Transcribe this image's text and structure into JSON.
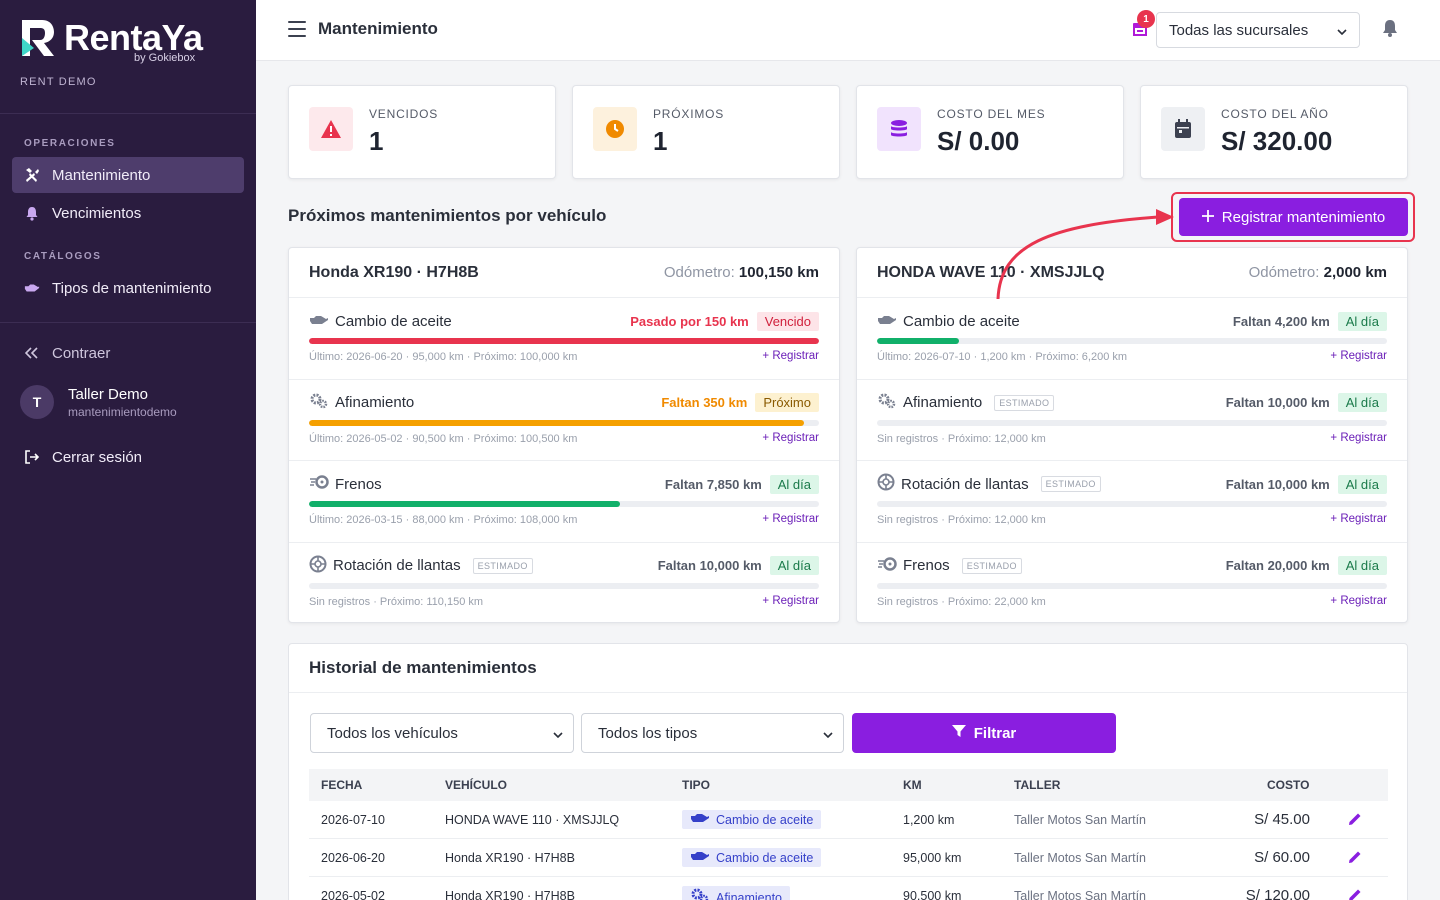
{
  "brand": {
    "name": "RentaYa",
    "by": "by Gokiebox",
    "account": "RENT DEMO"
  },
  "sidebar": {
    "section_ops": "OPERACIONES",
    "item_mant": "Mantenimiento",
    "item_venc": "Vencimientos",
    "section_cat": "CATÁLOGOS",
    "item_tipos": "Tipos de mantenimiento",
    "collapse": "Contraer",
    "user_initial": "T",
    "user_name": "Taller Demo",
    "user_sub": "mantenimientodemo",
    "logout": "Cerrar sesión"
  },
  "topbar": {
    "title": "Mantenimiento",
    "branch": "Todas las sucursales",
    "notif_count": "1"
  },
  "stats": [
    {
      "label": "VENCIDOS",
      "value": "1",
      "color": "#e8344e"
    },
    {
      "label": "PRÓXIMOS",
      "value": "1",
      "color": "#f08a00"
    },
    {
      "label": "COSTO DEL MES",
      "value": "S/ 0.00",
      "color": "#8a1ee0"
    },
    {
      "label": "COSTO DEL AÑO",
      "value": "S/ 320.00",
      "color": "#3c4150"
    }
  ],
  "upcoming": {
    "title": "Próximos mantenimientos por vehículo",
    "register_label": "Registrar mantenimiento",
    "odometer_label": "Odómetro:",
    "estimated_label": "ESTIMADO",
    "row_register": "Registrar",
    "vehicles": [
      {
        "name": "Honda XR190 · H7H8B",
        "odometer": "100,150 km",
        "items": [
          {
            "name": "Cambio de aceite",
            "icon": "oil-can",
            "estimated": false,
            "status_text": "Pasado por 150 km",
            "status_color": "#e8344e",
            "badge": "Vencido",
            "badge_bg": "#fde4e8",
            "badge_fg": "#d0203c",
            "progress": 100,
            "bar_color": "#e8344e",
            "detail": "Último: 2026-06-20 · 95,000 km · Próximo: 100,000 km"
          },
          {
            "name": "Afinamiento",
            "icon": "cogs",
            "estimated": false,
            "status_text": "Faltan 350 km",
            "status_color": "#f08a00",
            "badge": "Próximo",
            "badge_bg": "#fdf1d0",
            "badge_fg": "#8a5a00",
            "progress": 97,
            "bar_color": "#f5a000",
            "detail": "Último: 2026-05-02 · 90,500 km · Próximo: 100,500 km"
          },
          {
            "name": "Frenos",
            "icon": "brakes",
            "estimated": false,
            "status_text": "Faltan 7,850 km",
            "status_color": "#555b68",
            "badge": "Al día",
            "badge_bg": "#dcf6e8",
            "badge_fg": "#1a7a4a",
            "progress": 61,
            "bar_color": "#11b06a",
            "detail": "Último: 2026-03-15 · 88,000 km · Próximo: 108,000 km"
          },
          {
            "name": "Rotación de llantas",
            "icon": "tire",
            "estimated": true,
            "status_text": "Faltan 10,000 km",
            "status_color": "#555b68",
            "badge": "Al día",
            "badge_bg": "#dcf6e8",
            "badge_fg": "#1a7a4a",
            "progress": 0,
            "bar_color": "#11b06a",
            "detail": "Sin registros · Próximo: 110,150 km"
          }
        ]
      },
      {
        "name": "HONDA WAVE 110 · XMSJJLQ",
        "odometer": "2,000 km",
        "items": [
          {
            "name": "Cambio de aceite",
            "icon": "oil-can",
            "estimated": false,
            "status_text": "Faltan 4,200 km",
            "status_color": "#555b68",
            "badge": "Al día",
            "badge_bg": "#dcf6e8",
            "badge_fg": "#1a7a4a",
            "progress": 16,
            "bar_color": "#11b06a",
            "detail": "Último: 2026-07-10 · 1,200 km · Próximo: 6,200 km"
          },
          {
            "name": "Afinamiento",
            "icon": "cogs",
            "estimated": true,
            "status_text": "Faltan 10,000 km",
            "status_color": "#555b68",
            "badge": "Al día",
            "badge_bg": "#dcf6e8",
            "badge_fg": "#1a7a4a",
            "progress": 0,
            "bar_color": "#11b06a",
            "detail": "Sin registros · Próximo: 12,000 km"
          },
          {
            "name": "Rotación de llantas",
            "icon": "tire",
            "estimated": true,
            "status_text": "Faltan 10,000 km",
            "status_color": "#555b68",
            "badge": "Al día",
            "badge_bg": "#dcf6e8",
            "badge_fg": "#1a7a4a",
            "progress": 0,
            "bar_color": "#11b06a",
            "detail": "Sin registros · Próximo: 12,000 km"
          },
          {
            "name": "Frenos",
            "icon": "brakes",
            "estimated": true,
            "status_text": "Faltan 20,000 km",
            "status_color": "#555b68",
            "badge": "Al día",
            "badge_bg": "#dcf6e8",
            "badge_fg": "#1a7a4a",
            "progress": 0,
            "bar_color": "#11b06a",
            "detail": "Sin registros · Próximo: 22,000 km"
          }
        ]
      }
    ]
  },
  "history": {
    "title": "Historial de mantenimientos",
    "filter_vehicle": "Todos los vehículos",
    "filter_type": "Todos los tipos",
    "filter_button": "Filtrar",
    "columns": [
      "FECHA",
      "VEHÍCULO",
      "TIPO",
      "KM",
      "TALLER",
      "COSTO"
    ],
    "rows": [
      {
        "fecha": "2026-07-10",
        "vehiculo": "HONDA WAVE 110 · XMSJJLQ",
        "tipo": "Cambio de aceite",
        "tipo_icon": "oil-can",
        "km": "1,200 km",
        "taller": "Taller Motos San Martín",
        "costo": "S/ 45.00"
      },
      {
        "fecha": "2026-06-20",
        "vehiculo": "Honda XR190 · H7H8B",
        "tipo": "Cambio de aceite",
        "tipo_icon": "oil-can",
        "km": "95,000 km",
        "taller": "Taller Motos San Martín",
        "costo": "S/ 60.00"
      },
      {
        "fecha": "2026-05-02",
        "vehiculo": "Honda XR190 · H7H8B",
        "tipo": "Afinamiento",
        "tipo_icon": "cogs",
        "km": "90,500 km",
        "taller": "Taller Motos San Martín",
        "costo": "S/ 120.00"
      }
    ]
  }
}
